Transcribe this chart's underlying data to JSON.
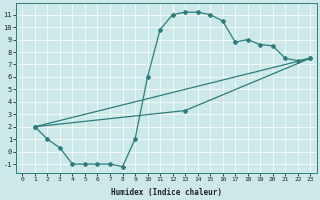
{
  "xlabel": "Humidex (Indice chaleur)",
  "bg_color": "#cce8e8",
  "line_color": "#2d7d7d",
  "grid_color": "#ffffff",
  "xlim": [
    -0.5,
    23.5
  ],
  "ylim": [
    -1.7,
    11.9
  ],
  "xticks": [
    0,
    1,
    2,
    3,
    4,
    5,
    6,
    7,
    8,
    9,
    10,
    11,
    12,
    13,
    14,
    15,
    16,
    17,
    18,
    19,
    20,
    21,
    22,
    23
  ],
  "yticks": [
    -1,
    0,
    1,
    2,
    3,
    4,
    5,
    6,
    7,
    8,
    9,
    10,
    11
  ],
  "line1_x": [
    1,
    2,
    3,
    4,
    5,
    6,
    7,
    8,
    9,
    10,
    11,
    12,
    13,
    14,
    15,
    16,
    17,
    18,
    19,
    20,
    21,
    22,
    23
  ],
  "line1_y": [
    2.0,
    1.0,
    0.3,
    -1.0,
    -1.0,
    -1.0,
    -1.0,
    -1.2,
    1.0,
    6.0,
    9.8,
    11.0,
    11.2,
    11.2,
    11.0,
    10.5,
    8.8,
    9.0,
    8.6,
    8.5,
    7.5,
    7.3,
    7.5
  ],
  "line2_x": [
    1,
    13,
    23
  ],
  "line2_y": [
    2.0,
    3.3,
    7.5
  ],
  "line3_x": [
    1,
    23
  ],
  "line3_y": [
    2.0,
    7.5
  ],
  "marker_size": 2.0,
  "linewidth": 0.9,
  "xlabel_fontsize": 5.5,
  "tick_fontsize": 4.5
}
